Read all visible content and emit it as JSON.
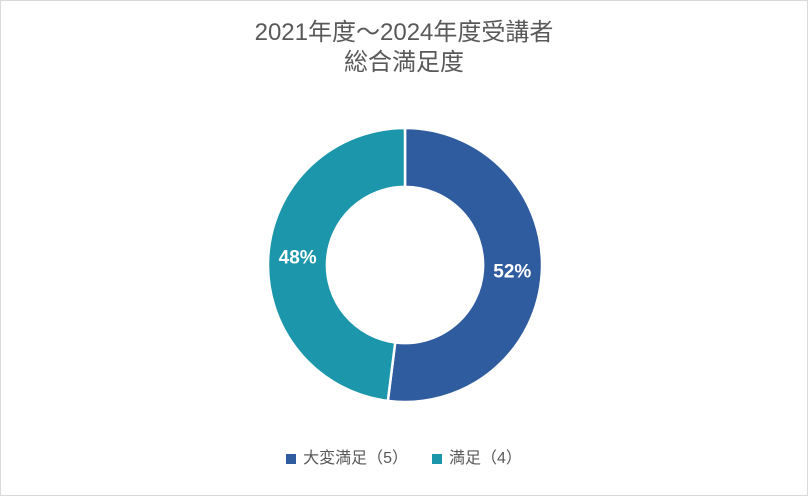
{
  "title": {
    "line1": "2021年度～2024年度受講者",
    "line2": "総合満足度"
  },
  "chart_data": {
    "type": "pie",
    "subtype": "donut",
    "title": "2021年度～2024年度受講者 総合満足度",
    "categories": [
      "大変満足（5）",
      "満足（4）"
    ],
    "values": [
      52,
      48
    ],
    "unit": "%",
    "value_labels": [
      "52%",
      "48%"
    ],
    "colors": [
      "#2F5B9F",
      "#1C96AA"
    ],
    "label_color": "#FFFFFF",
    "separator_color": "#FFFFFF",
    "inner_radius_ratio": 0.57,
    "start_angle_deg": 0,
    "direction": "clockwise",
    "legend_position": "bottom"
  },
  "legend": {
    "items": [
      {
        "label": "大変満足（5）",
        "color": "#2F5B9F"
      },
      {
        "label": "満足（4）",
        "color": "#1C96AA"
      }
    ]
  }
}
